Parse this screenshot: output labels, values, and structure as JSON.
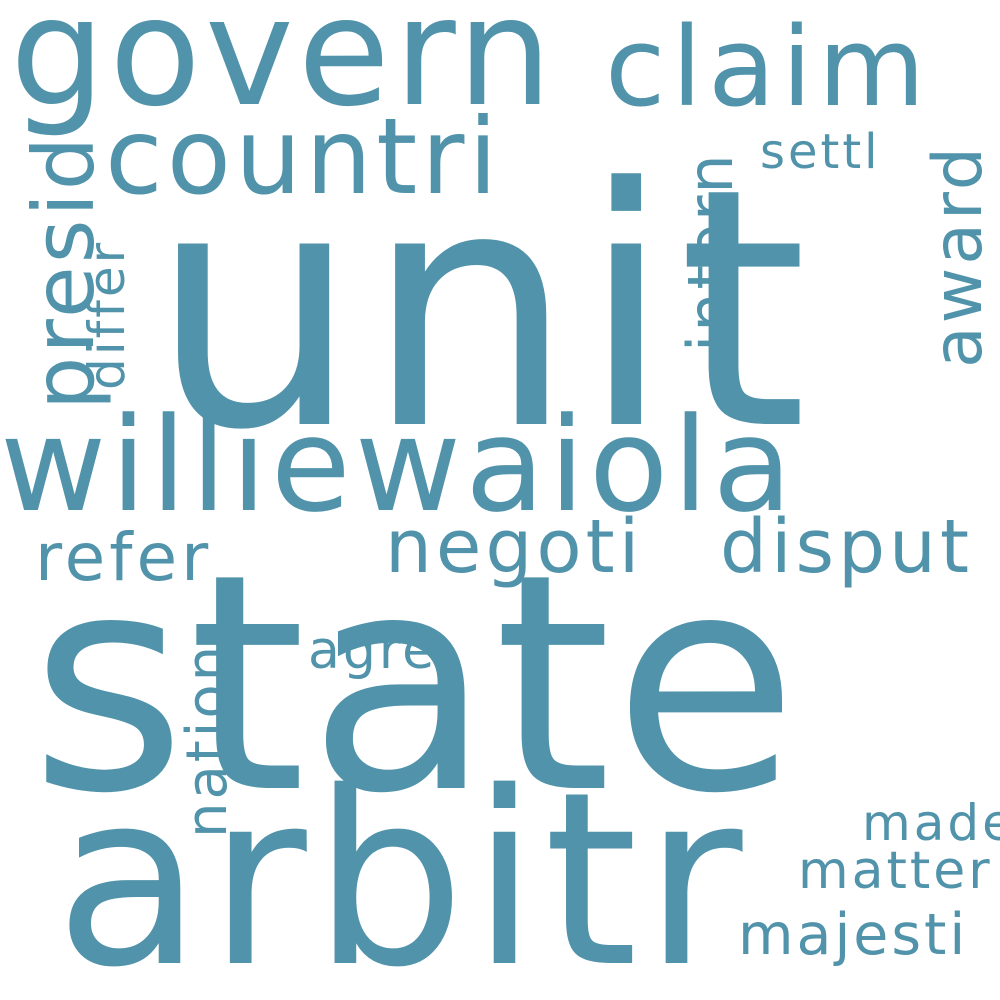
{
  "word_cloud": {
    "color": "#5193aa",
    "background": "#ffffff",
    "words": {
      "unit": "unit",
      "state": "state",
      "arbitr": "arbitr",
      "williewaiola": "williewaiola",
      "govern": "govern",
      "claim": "claim",
      "countri": "countri",
      "negoti": "negoti",
      "disput": "disput",
      "refer": "refer",
      "presid": "presid",
      "award": "award",
      "intern": "intern",
      "differ": "differ",
      "settl": "settl",
      "agre": "agre",
      "nation": "nation",
      "made": "made",
      "matter": "matter",
      "majesti": "majesti"
    }
  }
}
